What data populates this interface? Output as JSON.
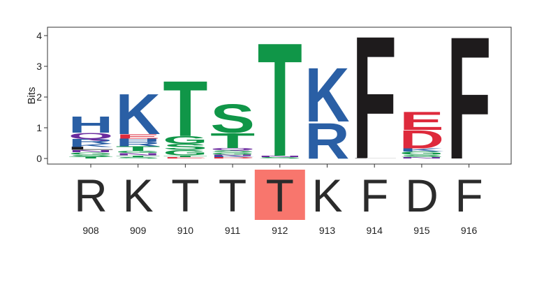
{
  "chart_data": {
    "type": "sequence-logo",
    "ylabel": "Bits",
    "ylim": [
      0,
      4.3
    ],
    "yticks": [
      0,
      1,
      2,
      3,
      4
    ],
    "grid": false,
    "colors": {
      "blue": "#2a5fa5",
      "green": "#109648",
      "red": "#de2a3c",
      "purple": "#6b2c9e",
      "black": "#1e1b1c",
      "highlight": "#f8766d"
    },
    "positions": [
      {
        "label": "908",
        "residue": "R",
        "highlight": false,
        "stack": [
          {
            "letter": "T",
            "bits": 0.06,
            "color": "green"
          },
          {
            "letter": "S",
            "bits": 0.06,
            "color": "green"
          },
          {
            "letter": "G",
            "bits": 0.08,
            "color": "green"
          },
          {
            "letter": "N",
            "bits": 0.08,
            "color": "purple"
          },
          {
            "letter": "L",
            "bits": 0.1,
            "color": "black"
          },
          {
            "letter": "K",
            "bits": 0.1,
            "color": "blue"
          },
          {
            "letter": "R",
            "bits": 0.16,
            "color": "blue"
          },
          {
            "letter": "Q",
            "bits": 0.2,
            "color": "purple"
          },
          {
            "letter": "H",
            "bits": 0.55,
            "color": "blue"
          }
        ]
      },
      {
        "label": "909",
        "residue": "K",
        "highlight": false,
        "stack": [
          {
            "letter": "S",
            "bits": 0.05,
            "color": "green"
          },
          {
            "letter": "T",
            "bits": 0.05,
            "color": "green"
          },
          {
            "letter": "N",
            "bits": 0.08,
            "color": "purple"
          },
          {
            "letter": "G",
            "bits": 0.07,
            "color": "green"
          },
          {
            "letter": "T",
            "bits": 0.15,
            "color": "green"
          },
          {
            "letter": "R",
            "bits": 0.15,
            "color": "blue"
          },
          {
            "letter": "H",
            "bits": 0.1,
            "color": "blue"
          },
          {
            "letter": "E",
            "bits": 0.14,
            "color": "red"
          },
          {
            "letter": "K",
            "bits": 1.35,
            "color": "blue"
          }
        ]
      },
      {
        "label": "910",
        "residue": "T",
        "highlight": false,
        "stack": [
          {
            "letter": "E",
            "bits": 0.05,
            "color": "red"
          },
          {
            "letter": "T",
            "bits": 0.05,
            "color": "green"
          },
          {
            "letter": "G",
            "bits": 0.18,
            "color": "green"
          },
          {
            "letter": "S",
            "bits": 0.2,
            "color": "green"
          },
          {
            "letter": "G",
            "bits": 0.25,
            "color": "green"
          },
          {
            "letter": "T",
            "bits": 1.85,
            "color": "green"
          }
        ]
      },
      {
        "label": "911",
        "residue": "T",
        "highlight": false,
        "stack": [
          {
            "letter": "D",
            "bits": 0.04,
            "color": "red"
          },
          {
            "letter": "K",
            "bits": 0.04,
            "color": "blue"
          },
          {
            "letter": "N",
            "bits": 0.05,
            "color": "purple"
          },
          {
            "letter": "G",
            "bits": 0.06,
            "color": "green"
          },
          {
            "letter": "S",
            "bits": 0.08,
            "color": "green"
          },
          {
            "letter": "Q",
            "bits": 0.07,
            "color": "purple"
          },
          {
            "letter": "T",
            "bits": 0.5,
            "color": "green"
          },
          {
            "letter": "S",
            "bits": 0.95,
            "color": "green"
          }
        ]
      },
      {
        "label": "912",
        "residue": "T",
        "highlight": true,
        "stack": [
          {
            "letter": "S",
            "bits": 0.05,
            "color": "green"
          },
          {
            "letter": "N",
            "bits": 0.04,
            "color": "purple"
          },
          {
            "letter": "T",
            "bits": 3.8,
            "color": "green"
          }
        ]
      },
      {
        "label": "913",
        "residue": "K",
        "highlight": false,
        "stack": [
          {
            "letter": "R",
            "bits": 1.2,
            "color": "blue"
          },
          {
            "letter": "K",
            "bits": 1.8,
            "color": "blue"
          }
        ]
      },
      {
        "label": "914",
        "residue": "F",
        "highlight": false,
        "stack": [
          {
            "letter": "L",
            "bits": 0.02,
            "color": "black"
          },
          {
            "letter": "F",
            "bits": 4.1,
            "color": "black"
          }
        ]
      },
      {
        "label": "915",
        "residue": "D",
        "highlight": false,
        "stack": [
          {
            "letter": "N",
            "bits": 0.05,
            "color": "purple"
          },
          {
            "letter": "S",
            "bits": 0.08,
            "color": "green"
          },
          {
            "letter": "G",
            "bits": 0.1,
            "color": "green"
          },
          {
            "letter": "K",
            "bits": 0.1,
            "color": "blue"
          },
          {
            "letter": "D",
            "bits": 0.6,
            "color": "red"
          },
          {
            "letter": "E",
            "bits": 0.6,
            "color": "red"
          }
        ]
      },
      {
        "label": "916",
        "residue": "F",
        "highlight": false,
        "stack": [
          {
            "letter": "F",
            "bits": 4.1,
            "color": "black"
          }
        ]
      }
    ]
  }
}
